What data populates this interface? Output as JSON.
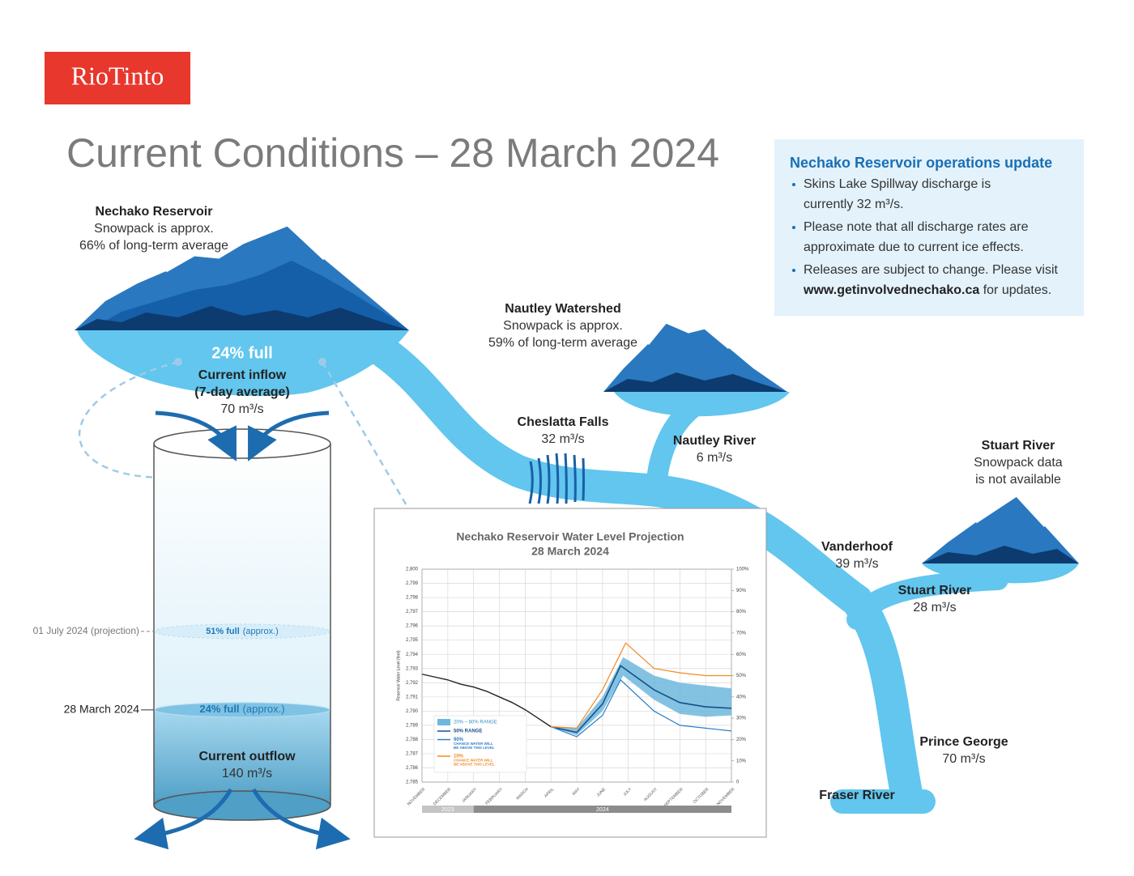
{
  "logo": "RioTinto",
  "title": "Current Conditions – 28 March 2024",
  "update": {
    "title": "Nechako Reservoir operations update",
    "bullets": [
      {
        "lines": [
          "Skins Lake Spillway discharge is",
          "currently 32 m³/s."
        ]
      },
      {
        "lines": [
          "Please note that all discharge rates are",
          "approximate due to current ice effects."
        ]
      },
      {
        "lines": [
          "Releases are subject to change. Please visit"
        ],
        "link": "www.getinvolvednechako.ca",
        "after": " for updates."
      }
    ]
  },
  "reservoir_fill": "24% full",
  "places": [
    {
      "bold": [
        "Nechako Reservoir"
      ],
      "lines": [
        "Snowpack is approx.",
        "66% of long-term average"
      ]
    },
    {
      "bold": [
        "Current inflow",
        "(7-day average)"
      ],
      "lines": [
        "70 m³/s"
      ]
    },
    {
      "bold": [
        "Nautley Watershed"
      ],
      "lines": [
        "Snowpack is approx.",
        "59% of long-term average"
      ]
    },
    {
      "bold": [
        "Cheslatta Falls"
      ],
      "lines": [
        "32 m³/s"
      ]
    },
    {
      "bold": [
        "Nautley River"
      ],
      "lines": [
        "6 m³/s"
      ]
    },
    {
      "bold": [
        "Stuart River"
      ],
      "lines": [
        "Snowpack data",
        "is not available"
      ]
    },
    {
      "bold": [
        "Vanderhoof"
      ],
      "lines": [
        "39 m³/s"
      ]
    },
    {
      "bold": [
        "Stuart River"
      ],
      "lines": [
        "28 m³/s"
      ]
    },
    {
      "bold": [
        "Prince George"
      ],
      "lines": [
        "70 m³/s"
      ]
    },
    {
      "bold": [
        "Fraser River"
      ],
      "lines": []
    },
    {
      "bold": [
        "Current outflow"
      ],
      "lines": [
        "140 m³/s"
      ]
    }
  ],
  "tank": {
    "levels": [
      {
        "date": "01 July 2024 (projection)",
        "value": 51,
        "label": "51% full",
        "note": "(approx.)"
      },
      {
        "date": "28 March 2024",
        "value": 24,
        "label": "24% full",
        "note": "(approx.)"
      }
    ]
  },
  "chart": {
    "type": "line",
    "title": [
      "Nechako Reservoir Water Level Projection",
      "28 March 2024"
    ],
    "ylabel": "Reservoir Water Level (feet)",
    "xlim": [
      0,
      12
    ],
    "xticks": [
      {
        "value": 0,
        "label": "NOVEMBER"
      },
      {
        "value": 1,
        "label": "DECEMBER"
      },
      {
        "value": 2,
        "label": "JANUARY"
      },
      {
        "value": 3,
        "label": "FEBRUARY"
      },
      {
        "value": 4,
        "label": "MARCH"
      },
      {
        "value": 5,
        "label": "APRIL"
      },
      {
        "value": 6,
        "label": "MAY"
      },
      {
        "value": 7,
        "label": "JUNE"
      },
      {
        "value": 8,
        "label": "JULY"
      },
      {
        "value": 9,
        "label": "AUGUST"
      },
      {
        "value": 10,
        "label": "SEPTEMBER"
      },
      {
        "value": 11,
        "label": "OCTOBER"
      },
      {
        "value": 12,
        "label": "NOVEMBER"
      }
    ],
    "years": [
      {
        "label": "2023",
        "from": 0,
        "to": 2
      },
      {
        "label": "2024",
        "from": 2,
        "to": 12
      }
    ],
    "ylim": [
      2785,
      2800
    ],
    "yticks": [
      {
        "value": 2785,
        "label": "2,785"
      },
      {
        "value": 2786,
        "label": "2,786"
      },
      {
        "value": 2787,
        "label": "2,787"
      },
      {
        "value": 2788,
        "label": "2,788"
      },
      {
        "value": 2789,
        "label": "2,789"
      },
      {
        "value": 2790,
        "label": "2,790"
      },
      {
        "value": 2791,
        "label": "2,791"
      },
      {
        "value": 2792,
        "label": "2,792"
      },
      {
        "value": 2793,
        "label": "2,793"
      },
      {
        "value": 2794,
        "label": "2,794"
      },
      {
        "value": 2795,
        "label": "2,795"
      },
      {
        "value": 2796,
        "label": "2,796"
      },
      {
        "value": 2797,
        "label": "2,797"
      },
      {
        "value": 2798,
        "label": "2,798"
      },
      {
        "value": 2799,
        "label": "2,799"
      },
      {
        "value": 2800,
        "label": "2,800"
      }
    ],
    "y2lim": [
      0,
      100
    ],
    "y2ticks": [
      0,
      {
        "value": 10,
        "label": "10%"
      },
      {
        "value": 20,
        "label": "20%"
      },
      {
        "value": 30,
        "label": "30%"
      },
      {
        "value": 40,
        "label": "40%"
      },
      {
        "value": 50,
        "label": "50%"
      },
      {
        "value": 60,
        "label": "60%"
      },
      {
        "value": 70,
        "label": "70%"
      },
      {
        "value": 80,
        "label": "80%"
      },
      {
        "value": 90,
        "label": "90%"
      },
      {
        "value": 100,
        "label": "100%"
      }
    ],
    "grid": true,
    "band": {
      "name": "20% – 80% RANGE",
      "color": "#6fb7dd",
      "x": [
        5,
        6,
        7,
        7.8,
        9,
        10,
        11,
        12
      ],
      "low": [
        2788.9,
        2788.3,
        2790.0,
        2792.5,
        2790.8,
        2789.8,
        2789.6,
        2789.7
      ],
      "high": [
        2788.9,
        2788.8,
        2791.0,
        2793.8,
        2792.5,
        2792.0,
        2791.8,
        2791.6
      ]
    },
    "history": {
      "color": "#222222",
      "x": [
        0,
        0.5,
        1,
        1.5,
        2,
        2.5,
        3,
        3.5,
        4,
        4.5,
        5
      ],
      "values": [
        2792.6,
        2792.4,
        2792.2,
        2791.9,
        2791.7,
        2791.4,
        2791.0,
        2790.6,
        2790.1,
        2789.5,
        2788.9
      ]
    },
    "series": [
      {
        "name": "50% RANGE",
        "color": "#17508a",
        "x": [
          5,
          6,
          7,
          7.7,
          9,
          10,
          11,
          12
        ],
        "values": [
          2788.9,
          2788.5,
          2790.5,
          2793.2,
          2791.5,
          2790.6,
          2790.3,
          2790.2
        ]
      },
      {
        "name": "90%",
        "note": [
          "CHANCE WATER WILL",
          "BE ABOVE THIS LEVEL"
        ],
        "color": "#2b7fc9",
        "x": [
          5,
          6,
          7,
          7.7,
          9,
          10,
          11,
          12
        ],
        "values": [
          2788.9,
          2788.2,
          2789.7,
          2792.2,
          2790.0,
          2789.0,
          2788.8,
          2788.6
        ]
      },
      {
        "name": "10%",
        "note": [
          "CHANCE WATER WILL",
          "BE ABOVE THIS LEVEL"
        ],
        "color": "#f08a24",
        "x": [
          5,
          6,
          7,
          7.9,
          9,
          10,
          11,
          12
        ],
        "values": [
          2788.9,
          2788.8,
          2791.5,
          2794.8,
          2793.0,
          2792.7,
          2792.5,
          2792.5
        ]
      }
    ]
  }
}
